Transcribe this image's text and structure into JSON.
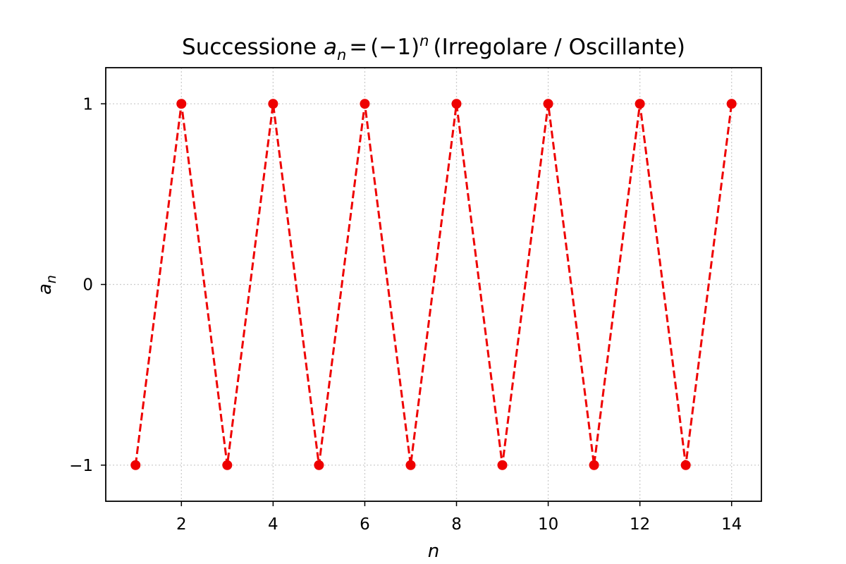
{
  "chart_data": {
    "type": "line",
    "title": "Successione",
    "title_formula": {
      "a": "a",
      "n_sub": "n",
      "equals": "=",
      "base": "(−1)",
      "n_sup": "n",
      "suffix": "(Irregolare / Oscillante)"
    },
    "xlabel": "n",
    "ylabel": {
      "main": "a",
      "sub": "n"
    },
    "xlim": [
      0.35,
      14.65
    ],
    "ylim": [
      -1.2,
      1.2
    ],
    "xticks": [
      2,
      4,
      6,
      8,
      10,
      12,
      14
    ],
    "xtick_labels": [
      "2",
      "4",
      "6",
      "8",
      "10",
      "12",
      "14"
    ],
    "yticks": [
      -1,
      0,
      1
    ],
    "ytick_labels": [
      "−1",
      "0",
      "1"
    ],
    "grid": true,
    "legend": false,
    "series": [
      {
        "x": [
          1,
          2,
          3,
          4,
          5,
          6,
          7,
          8,
          9,
          10,
          11,
          12,
          13,
          14
        ],
        "values": [
          -1,
          1,
          -1,
          1,
          -1,
          1,
          -1,
          1,
          -1,
          1,
          -1,
          1,
          -1,
          1
        ],
        "color": "#ee0000",
        "line_style": "dashed",
        "marker": "circle"
      }
    ]
  }
}
